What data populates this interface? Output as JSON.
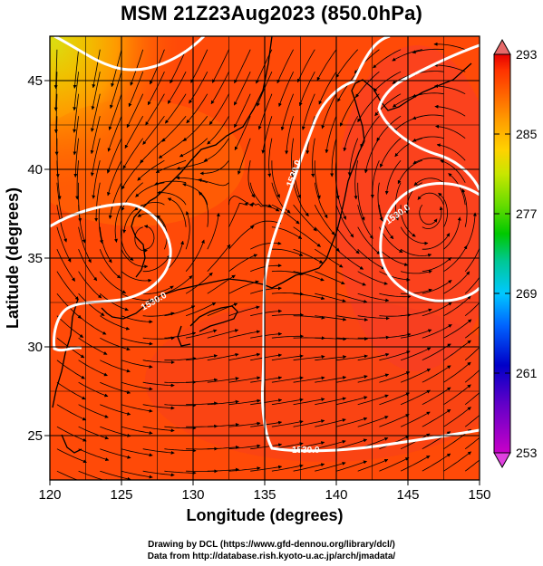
{
  "title": "MSM 21Z23Aug2023 (850.0hPa)",
  "x_axis": {
    "label": "Longitude (degrees)",
    "ticks": [
      "120",
      "125",
      "130",
      "135",
      "140",
      "145",
      "150"
    ],
    "range": [
      120,
      150
    ]
  },
  "y_axis": {
    "label": "Latitude  (degrees)",
    "ticks": [
      "25",
      "30",
      "35",
      "40",
      "45"
    ],
    "range": [
      22.5,
      47.5
    ]
  },
  "colorbar": {
    "ticks": [
      "293",
      "285",
      "277",
      "269",
      "261",
      "253"
    ],
    "range": [
      253,
      293
    ],
    "colors": [
      "#c800c8",
      "#5000c8",
      "#0000c8",
      "#0064ff",
      "#00c8ff",
      "#00c896",
      "#00c800",
      "#64dc00",
      "#c8e600",
      "#ffd200",
      "#ffa000",
      "#ff6400",
      "#ff3200",
      "#e60000"
    ]
  },
  "contours": [
    {
      "label": "1530.0"
    },
    {
      "label": "1530.0"
    },
    {
      "label": "1530.0"
    },
    {
      "label": "1530.0"
    }
  ],
  "credits": {
    "line1": "Drawing by DCL (https://www.gfd-dennou.org/library/dcl/)",
    "line2": "Data from http://database.rish.kyoto-u.ac.jp/arch/jmadata/"
  }
}
